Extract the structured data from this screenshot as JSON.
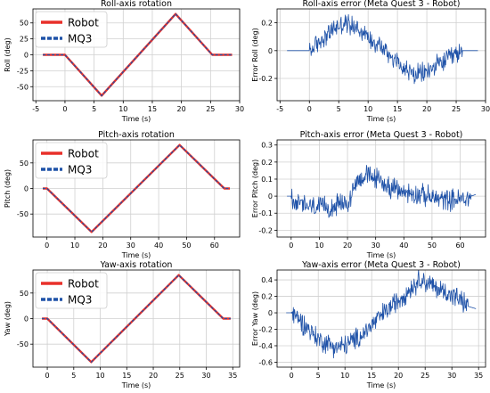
{
  "chart_data": [
    {
      "type": "line",
      "title": "Roll-axis rotation",
      "xlabel": "Time (s)",
      "ylabel": "Roll (deg)",
      "xlim": [
        -5.5,
        30
      ],
      "ylim": [
        -72,
        72
      ],
      "xticks": [
        -5,
        0,
        5,
        10,
        15,
        20,
        25,
        30
      ],
      "yticks": [
        -50,
        -25,
        0,
        25,
        50
      ],
      "grid": true,
      "legend": "top-left",
      "series": [
        {
          "name": "Robot",
          "color": "#e8302a",
          "style": "solid",
          "x": [
            -3.8,
            0,
            6.3,
            19,
            25.3,
            28.7
          ],
          "y": [
            0,
            0,
            -64,
            64,
            0,
            0
          ]
        },
        {
          "name": "MQ3",
          "color": "#1f52a8",
          "style": "dashed",
          "x": [
            -3.8,
            0,
            6.3,
            19,
            25.3,
            28.7
          ],
          "y": [
            0,
            0,
            -64,
            64,
            0,
            0
          ]
        }
      ]
    },
    {
      "type": "line",
      "title": "Roll-axis error (Meta Quest 3 - Robot)",
      "xlabel": "Time (s)",
      "ylabel": "Error Roll (deg)",
      "xlim": [
        -5.5,
        30
      ],
      "ylim": [
        -0.36,
        0.3
      ],
      "xticks": [
        -5,
        0,
        5,
        10,
        15,
        20,
        25,
        30
      ],
      "yticks": [
        -0.2,
        0.0,
        0.2
      ],
      "grid": true,
      "series": [
        {
          "color": "#1f52a8",
          "x": [
            -3.8,
            0,
            0.5,
            2,
            4,
            6,
            8,
            10,
            12,
            14,
            16,
            18,
            20,
            22,
            24,
            25.3,
            26,
            28.7
          ],
          "y": [
            0,
            0,
            0.01,
            0.08,
            0.15,
            0.2,
            0.17,
            0.1,
            0.04,
            -0.04,
            -0.12,
            -0.18,
            -0.15,
            -0.1,
            -0.05,
            -0.02,
            0,
            0
          ]
        }
      ]
    },
    {
      "type": "line",
      "title": "Pitch-axis rotation",
      "xlabel": "Time (s)",
      "ylabel": "Pitch (deg)",
      "xlim": [
        -5,
        69
      ],
      "ylim": [
        -95,
        95
      ],
      "xticks": [
        0,
        10,
        20,
        30,
        40,
        50,
        60
      ],
      "yticks": [
        -50,
        0,
        50
      ],
      "grid": true,
      "legend": "top-left",
      "series": [
        {
          "name": "Robot",
          "color": "#e8302a",
          "style": "solid",
          "x": [
            -1.5,
            0,
            16,
            47.5,
            63.5,
            65.5
          ],
          "y": [
            0,
            0,
            -85,
            85,
            0,
            0
          ]
        },
        {
          "name": "MQ3",
          "color": "#1f52a8",
          "style": "dashed",
          "x": [
            -1.5,
            0,
            16,
            47.5,
            63.5,
            65.5
          ],
          "y": [
            0,
            0,
            -85,
            85,
            0,
            0
          ]
        }
      ]
    },
    {
      "type": "line",
      "title": "Pitch-axis error (Meta Quest 3 - Robot)",
      "xlabel": "Time (s)",
      "ylabel": "Error Pitch (deg)",
      "xlim": [
        -5,
        69
      ],
      "ylim": [
        -0.24,
        0.33
      ],
      "xticks": [
        0,
        10,
        20,
        30,
        40,
        50,
        60
      ],
      "yticks": [
        -0.2,
        -0.1,
        0.0,
        0.1,
        0.2,
        0.3
      ],
      "grid": true,
      "series": [
        {
          "color": "#1f52a8",
          "x": [
            -1.5,
            0,
            2,
            6,
            10,
            14,
            18,
            21,
            22.5,
            26,
            30,
            34,
            38,
            42,
            46,
            50,
            54,
            58,
            62,
            64,
            65.5
          ],
          "y": [
            0,
            0,
            -0.04,
            -0.06,
            -0.07,
            -0.06,
            -0.05,
            -0.03,
            0.08,
            0.12,
            0.11,
            0.06,
            0.03,
            0.02,
            0.01,
            -0.01,
            -0.02,
            -0.02,
            -0.02,
            0.0,
            0.01
          ]
        }
      ]
    },
    {
      "type": "line",
      "title": "Yaw-axis rotation",
      "xlabel": "Time (s)",
      "ylabel": "Yaw (deg)",
      "xlim": [
        -2.7,
        36.3
      ],
      "ylim": [
        -95,
        95
      ],
      "xticks": [
        0,
        5,
        10,
        15,
        20,
        25,
        30,
        35
      ],
      "yticks": [
        -50,
        0,
        50
      ],
      "grid": true,
      "legend": "top-left",
      "series": [
        {
          "name": "Robot",
          "color": "#e8302a",
          "style": "solid",
          "x": [
            -1.0,
            0,
            8.3,
            24.8,
            33.2,
            34.6
          ],
          "y": [
            0,
            0,
            -85,
            85,
            0,
            0
          ]
        },
        {
          "name": "MQ3",
          "color": "#1f52a8",
          "style": "dashed",
          "x": [
            -1.0,
            0,
            8.3,
            24.8,
            33.2,
            34.6
          ],
          "y": [
            0,
            0,
            -85,
            85,
            0,
            0
          ]
        }
      ]
    },
    {
      "type": "line",
      "title": "Yaw-axis error (Meta Quest 3 - Robot)",
      "xlabel": "Time (s)",
      "ylabel": "Error Yaw (deg)",
      "xlim": [
        -2.7,
        36.3
      ],
      "ylim": [
        -0.66,
        0.52
      ],
      "xticks": [
        0,
        5,
        10,
        15,
        20,
        25,
        30,
        35
      ],
      "yticks": [
        -0.6,
        -0.4,
        -0.2,
        0.0,
        0.2,
        0.4
      ],
      "grid": true,
      "series": [
        {
          "color": "#1f52a8",
          "x": [
            -1.0,
            0,
            1,
            3,
            5,
            7,
            9,
            11,
            13,
            15,
            17,
            19,
            21,
            23,
            24,
            25,
            27,
            29,
            31,
            33,
            34.5
          ],
          "y": [
            0,
            0,
            -0.05,
            -0.18,
            -0.32,
            -0.38,
            -0.42,
            -0.36,
            -0.28,
            -0.15,
            -0.02,
            0.1,
            0.22,
            0.34,
            0.42,
            0.38,
            0.3,
            0.25,
            0.18,
            0.08,
            0.05
          ]
        }
      ]
    }
  ]
}
